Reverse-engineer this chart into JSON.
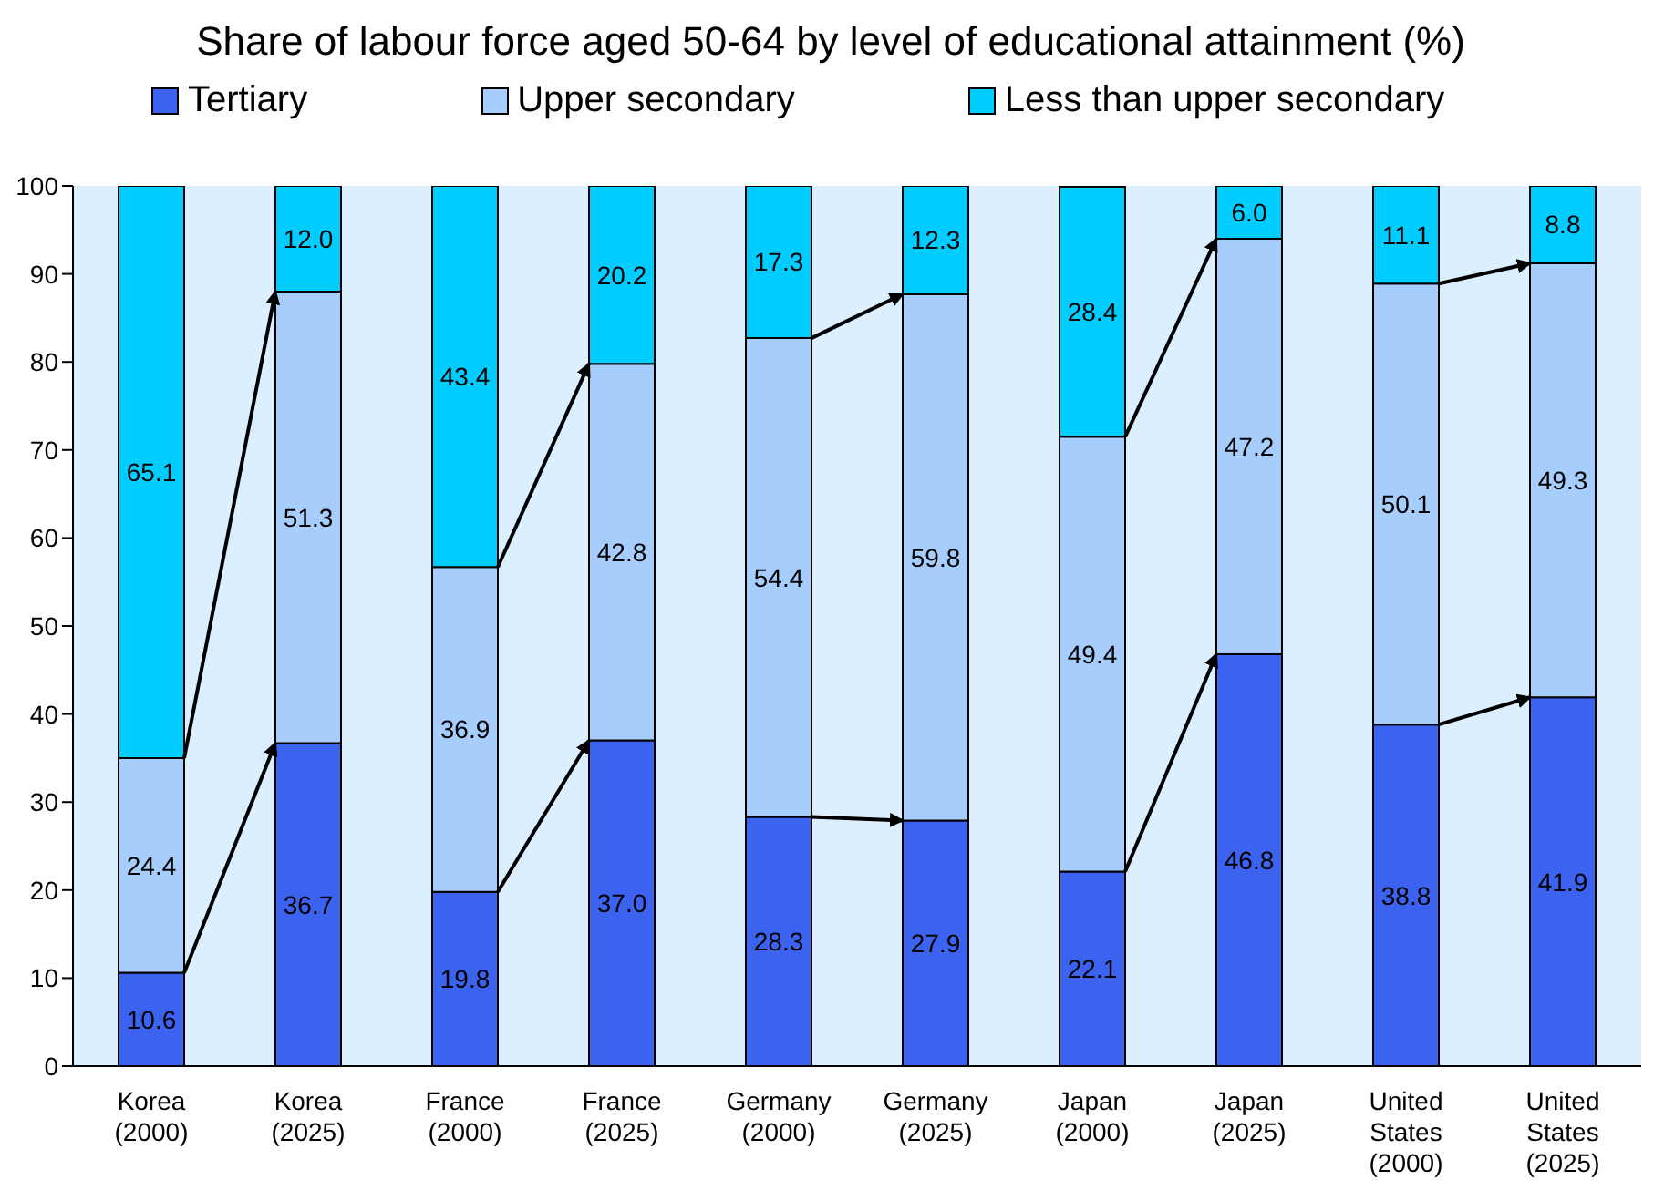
{
  "chart_data": {
    "type": "bar",
    "title": "Share of labour force aged 50-64 by level of educational attainment (%)",
    "categories": [
      "Korea (2000)",
      "Korea (2025)",
      "France (2000)",
      "France (2025)",
      "Germany (2000)",
      "Germany (2025)",
      "Japan (2000)",
      "Japan (2025)",
      "United States (2000)",
      "United States (2025)"
    ],
    "stacked": true,
    "ylim": [
      0,
      100
    ],
    "yticks": [
      0,
      10,
      20,
      30,
      40,
      50,
      60,
      70,
      80,
      90,
      100
    ],
    "grid": false,
    "legend": "top",
    "series": [
      {
        "name": "Tertiary",
        "color": "#3b63f0",
        "values": [
          10.6,
          36.7,
          19.8,
          37.0,
          28.3,
          27.9,
          22.1,
          46.8,
          38.8,
          41.9
        ],
        "value_labels": [
          "10.6",
          "36.7",
          "19.8",
          "37.0",
          "28.3",
          "27.9",
          "22.1",
          "46.8",
          "38.8",
          "41.9"
        ]
      },
      {
        "name": "Upper secondary",
        "color": "#a6cdfc",
        "values": [
          24.4,
          51.3,
          36.9,
          42.8,
          54.4,
          59.8,
          49.4,
          47.2,
          50.1,
          49.3
        ],
        "value_labels": [
          "24.4",
          "51.3",
          "36.9",
          "42.8",
          "54.4",
          "59.8",
          "49.4",
          "47.2",
          "50.1",
          "49.3"
        ]
      },
      {
        "name": "Less than upper secondary",
        "color": "#00ccff",
        "values": [
          65.1,
          12.0,
          43.4,
          20.2,
          17.3,
          12.3,
          28.4,
          6.0,
          11.1,
          8.8
        ],
        "value_labels": [
          "65.1",
          "12.0",
          "43.4",
          "20.2",
          "17.3",
          "12.3",
          "28.4",
          "6.0",
          "11.1",
          "8.8"
        ]
      }
    ]
  }
}
